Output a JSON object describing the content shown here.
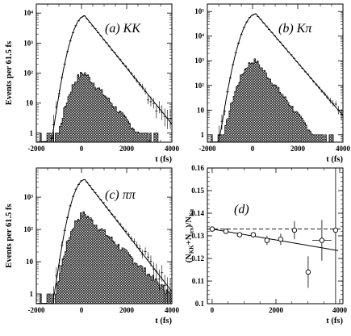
{
  "chart_data": [
    {
      "type": "line",
      "title": "(a) KK",
      "xlabel": "t (fs)",
      "ylabel": "Events per 61.5 fs",
      "xlim": [
        -2000,
        4000
      ],
      "ylim": [
        0.5,
        20000
      ],
      "yscale": "log",
      "xticks": [
        -2000,
        0,
        2000,
        4000
      ],
      "xticklabels": [
        "-2000",
        "0",
        "2000",
        "4000"
      ],
      "yticks": [
        1,
        10,
        100,
        1000,
        10000
      ],
      "yticklabels": [
        "1",
        "10",
        "10²",
        "10³",
        "10⁴"
      ],
      "shape": {
        "peak_x": 150,
        "signal_peak": 8000,
        "background_peak": 100,
        "signal_tail": 2,
        "background_tail": 1,
        "bg_end_x": 2500
      },
      "series": []
    },
    {
      "type": "line",
      "title": "(b) Kπ",
      "xlabel": "t (fs)",
      "ylabel": "",
      "xlim": [
        -2000,
        4000
      ],
      "ylim": [
        0.5,
        200000
      ],
      "yscale": "log",
      "xticks": [
        -2000,
        0,
        2000,
        4000
      ],
      "xticklabels": [
        "-2000",
        "0",
        "2000",
        "4000"
      ],
      "yticks": [
        1,
        10,
        100,
        1000,
        10000,
        100000
      ],
      "yticklabels": [
        "1",
        "10",
        "10²",
        "10³",
        "10⁴",
        "10⁵"
      ],
      "shape": {
        "peak_x": 150,
        "signal_peak": 80000,
        "background_peak": 1000,
        "signal_tail": 6,
        "background_tail": 1,
        "bg_end_x": 2700
      },
      "series": []
    },
    {
      "type": "line",
      "title": "(c) ππ",
      "xlabel": "t (fs)",
      "ylabel": "Events per 61.5 fs",
      "xlim": [
        -2000,
        4000
      ],
      "ylim": [
        0.5,
        8000
      ],
      "yscale": "log",
      "xticks": [
        -2000,
        0,
        2000,
        4000
      ],
      "xticklabels": [
        "-2000",
        "0",
        "2000",
        "4000"
      ],
      "yticks": [
        1,
        10,
        100,
        1000
      ],
      "yticklabels": [
        "1",
        "10",
        "10²",
        "10³"
      ],
      "shape": {
        "peak_x": 150,
        "signal_peak": 3500,
        "background_peak": 300,
        "signal_tail": 1.2,
        "background_tail": 1,
        "bg_end_x": 3900
      },
      "series": []
    },
    {
      "type": "scatter",
      "title": "(d)",
      "xlabel": "t (fs)",
      "ylabel": "(N_KK+N_ππ)/N_Kπ",
      "xlim": [
        -150,
        4100
      ],
      "ylim": [
        0.1,
        0.16
      ],
      "xticks": [
        0,
        2000,
        4000
      ],
      "xticklabels": [
        "0",
        "2000",
        "4000"
      ],
      "yticks": [
        0.1,
        0.11,
        0.12,
        0.13,
        0.14,
        0.15,
        0.16
      ],
      "yticklabels": [
        "0.1",
        "0.11",
        "0.12",
        "0.13",
        "0.14",
        "0.15",
        "0.16"
      ],
      "series": [
        {
          "x": [
            0,
            430,
            860,
            1290,
            1720,
            2150,
            2580,
            3010,
            3440,
            3870
          ],
          "y": [
            0.133,
            0.132,
            0.1305,
            0.1305,
            0.128,
            0.1285,
            0.1325,
            0.114,
            0.128,
            0.1325
          ],
          "xerr": [
            0,
            0,
            0,
            0,
            0,
            0,
            0,
            0,
            300,
            0
          ],
          "yerr": [
            0.0008,
            0.0008,
            0.001,
            0.0012,
            0.002,
            0.0025,
            0.004,
            0.007,
            0.009,
            0.035
          ]
        }
      ],
      "flat_line": 0.133,
      "fit_line": {
        "x": [
          0,
          3950
        ],
        "y": [
          0.133,
          0.1235
        ]
      }
    }
  ]
}
